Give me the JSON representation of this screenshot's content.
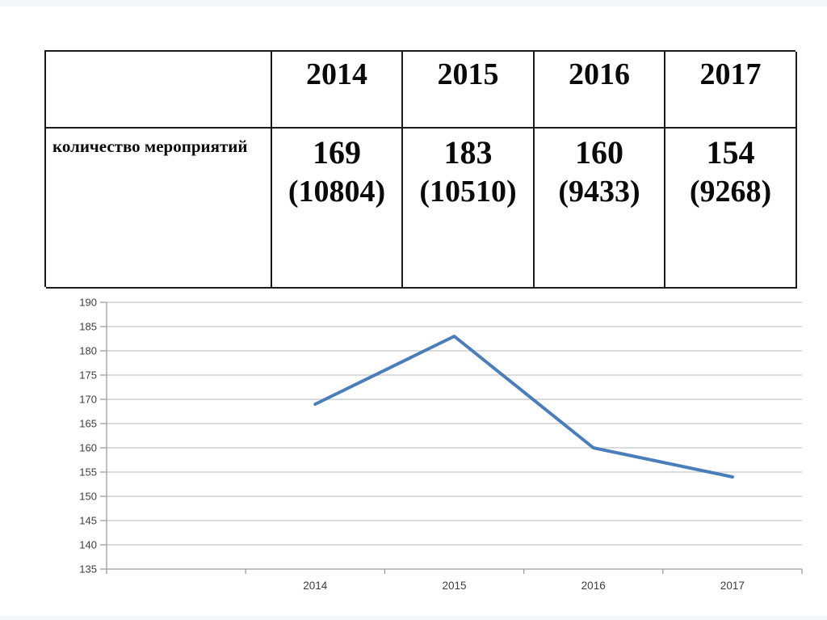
{
  "page": {
    "background": "#ffffff"
  },
  "table": {
    "corner_label": "",
    "columns": [
      "2014",
      "2015",
      "2016",
      "2017"
    ],
    "row_label": "количество мероприятий",
    "values": [
      {
        "main": "169",
        "sub": "(10804)"
      },
      {
        "main": "183",
        "sub": "(10510)"
      },
      {
        "main": "160",
        "sub": "(9433)"
      },
      {
        "main": "154",
        "sub": "(9268)"
      }
    ]
  },
  "chart_data": {
    "type": "line",
    "categories": [
      "2014",
      "2015",
      "2016",
      "2017"
    ],
    "series": [
      {
        "name": "количество мероприятий",
        "values": [
          169,
          183,
          160,
          154
        ]
      }
    ],
    "title": "",
    "xlabel": "",
    "ylabel": "",
    "ylim": [
      135,
      190
    ],
    "ytick_step": 5,
    "yticks": [
      135,
      140,
      145,
      150,
      155,
      160,
      165,
      170,
      175,
      180,
      185,
      190
    ],
    "grid": true,
    "legend": "none",
    "leading_empty_slots": 1,
    "line_color": "#4a7ebb",
    "axis_color": "#9e9e9e",
    "grid_color": "#c8c8c8",
    "label_color": "#3d3d3d"
  }
}
